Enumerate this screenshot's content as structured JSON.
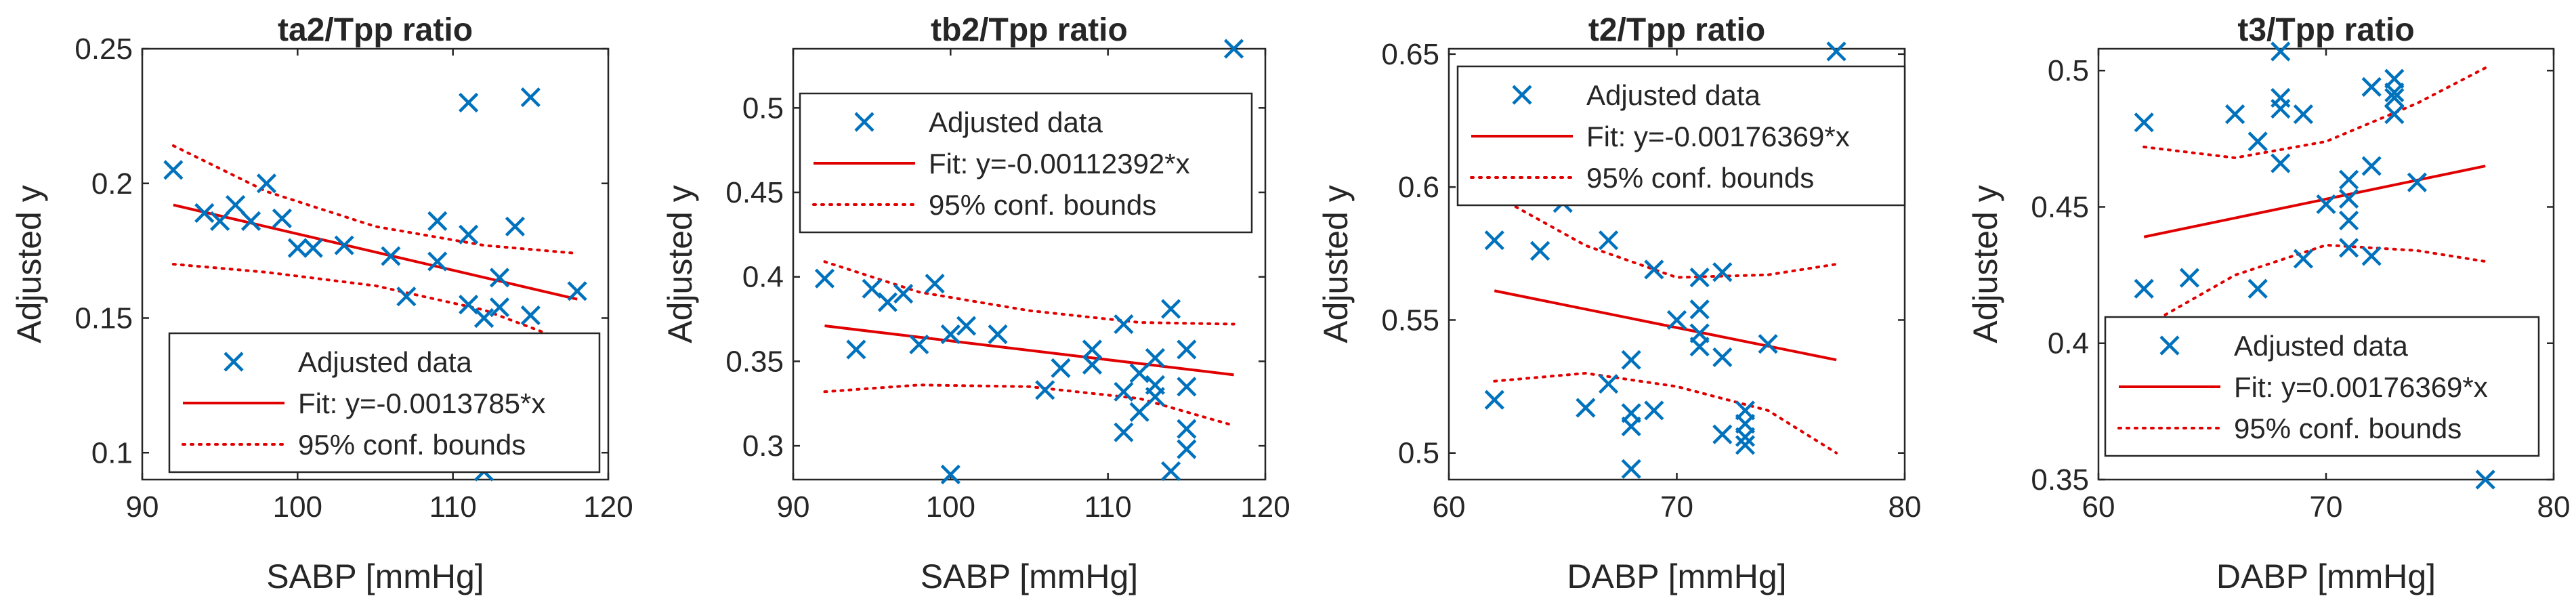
{
  "chart_data": [
    {
      "type": "scatter",
      "title": "ta2/Tpp ratio",
      "xlabel": "SABP [mmHg]",
      "ylabel": "Adjusted y",
      "xlim": [
        90,
        120
      ],
      "ylim": [
        0.09,
        0.25
      ],
      "xticks": [
        90,
        100,
        110,
        120
      ],
      "xtick_labels": [
        "90",
        "100",
        "110",
        "120"
      ],
      "yticks": [
        0.1,
        0.15,
        0.2,
        0.25
      ],
      "ytick_labels": [
        "0.1",
        "0.15",
        "0.2",
        "0.25"
      ],
      "legend_position": "bottom-right",
      "legend": [
        "Adjusted data",
        "Fit: y=-0.0013785*x",
        "95% conf. bounds"
      ],
      "points": {
        "x": [
          92,
          94,
          95,
          96,
          97,
          98,
          99,
          100,
          101,
          103,
          106,
          107,
          109,
          109,
          111,
          111,
          111,
          112,
          112,
          113,
          113,
          114,
          115,
          115,
          118
        ],
        "y": [
          0.205,
          0.189,
          0.186,
          0.192,
          0.186,
          0.2,
          0.187,
          0.176,
          0.176,
          0.177,
          0.173,
          0.158,
          0.171,
          0.186,
          0.23,
          0.181,
          0.155,
          0.15,
          0.093,
          0.165,
          0.154,
          0.184,
          0.232,
          0.151,
          0.16
        ]
      },
      "fit": {
        "x": [
          92,
          118
        ],
        "y": [
          0.192,
          0.157
        ]
      },
      "bounds_upper": {
        "x": [
          92,
          98,
          105,
          112,
          118
        ],
        "y": [
          0.214,
          0.197,
          0.184,
          0.177,
          0.174
        ]
      },
      "bounds_lower": {
        "x": [
          92,
          98,
          105,
          112,
          118
        ],
        "y": [
          0.17,
          0.167,
          0.162,
          0.153,
          0.14
        ]
      }
    },
    {
      "type": "scatter",
      "title": "tb2/Tpp ratio",
      "xlabel": "SABP [mmHg]",
      "ylabel": "Adjusted y",
      "xlim": [
        90,
        120
      ],
      "ylim": [
        0.28,
        0.535
      ],
      "xticks": [
        90,
        100,
        110,
        120
      ],
      "xtick_labels": [
        "90",
        "100",
        "110",
        "120"
      ],
      "yticks": [
        0.3,
        0.35,
        0.4,
        0.45,
        0.5
      ],
      "ytick_labels": [
        "0.3",
        "0.35",
        "0.4",
        "0.45",
        "0.5"
      ],
      "legend_position": "top",
      "legend": [
        "Adjusted data",
        "Fit: y=-0.00112392*x",
        "95% conf. bounds"
      ],
      "points": {
        "x": [
          92,
          94,
          95,
          96,
          97,
          98,
          99,
          100,
          100,
          101,
          103,
          106,
          107,
          109,
          109,
          111,
          111,
          111,
          112,
          112,
          113,
          113,
          113,
          114,
          114,
          115,
          115,
          115,
          115,
          118
        ],
        "y": [
          0.399,
          0.357,
          0.393,
          0.385,
          0.39,
          0.36,
          0.396,
          0.366,
          0.283,
          0.371,
          0.366,
          0.333,
          0.346,
          0.357,
          0.348,
          0.372,
          0.332,
          0.308,
          0.343,
          0.32,
          0.336,
          0.329,
          0.352,
          0.381,
          0.285,
          0.357,
          0.335,
          0.31,
          0.298,
          0.535
        ]
      },
      "fit": {
        "x": [
          92,
          118
        ],
        "y": [
          0.371,
          0.342
        ]
      },
      "bounds_upper": {
        "x": [
          92,
          98,
          105,
          112,
          118
        ],
        "y": [
          0.409,
          0.391,
          0.38,
          0.373,
          0.372
        ]
      },
      "bounds_lower": {
        "x": [
          92,
          98,
          105,
          112,
          118
        ],
        "y": [
          0.332,
          0.336,
          0.335,
          0.328,
          0.312
        ]
      }
    },
    {
      "type": "scatter",
      "title": "t2/Tpp ratio",
      "xlabel": "DABP [mmHg]",
      "ylabel": "Adjusted y",
      "xlim": [
        60,
        80
      ],
      "ylim": [
        0.49,
        0.652
      ],
      "xticks": [
        60,
        70,
        80
      ],
      "xtick_labels": [
        "60",
        "70",
        "80"
      ],
      "yticks": [
        0.5,
        0.55,
        0.6,
        0.65
      ],
      "ytick_labels": [
        "0.5",
        "0.55",
        "0.6",
        "0.65"
      ],
      "legend_position": "top",
      "legend": [
        "Adjusted data",
        "Fit: y=-0.00176369*x",
        "95% conf. bounds"
      ],
      "points": {
        "x": [
          62,
          62,
          64,
          65,
          66,
          67,
          67,
          68,
          68,
          68,
          68,
          69,
          69,
          70,
          71,
          71,
          71,
          71,
          72,
          72,
          72,
          73,
          73,
          73,
          73,
          74,
          77
        ],
        "y": [
          0.58,
          0.52,
          0.576,
          0.594,
          0.517,
          0.526,
          0.58,
          0.535,
          0.515,
          0.51,
          0.494,
          0.569,
          0.516,
          0.55,
          0.566,
          0.554,
          0.545,
          0.54,
          0.568,
          0.536,
          0.507,
          0.516,
          0.511,
          0.506,
          0.503,
          0.541,
          0.651
        ]
      },
      "fit": {
        "x": [
          62,
          77
        ],
        "y": [
          0.561,
          0.535
        ]
      },
      "bounds_upper": {
        "x": [
          62,
          66,
          70,
          74,
          77
        ],
        "y": [
          0.597,
          0.578,
          0.566,
          0.567,
          0.571
        ]
      },
      "bounds_lower": {
        "x": [
          62,
          66,
          70,
          74,
          77
        ],
        "y": [
          0.527,
          0.53,
          0.525,
          0.516,
          0.5
        ]
      }
    },
    {
      "type": "scatter",
      "title": "t3/Tpp ratio",
      "xlabel": "DABP [mmHg]",
      "ylabel": "Adjusted y",
      "xlim": [
        60,
        80
      ],
      "ylim": [
        0.35,
        0.508
      ],
      "xticks": [
        60,
        70,
        80
      ],
      "xtick_labels": [
        "60",
        "70",
        "80"
      ],
      "yticks": [
        0.35,
        0.4,
        0.45,
        0.5
      ],
      "ytick_labels": [
        "0.35",
        "0.4",
        "0.45",
        "0.5"
      ],
      "legend_position": "bottom",
      "legend": [
        "Adjusted data",
        "Fit: y=0.00176369*x",
        "95% conf. bounds"
      ],
      "points": {
        "x": [
          62,
          62,
          64,
          66,
          67,
          67,
          68,
          68,
          68,
          68,
          69,
          69,
          70,
          71,
          71,
          71,
          71,
          72,
          72,
          72,
          73,
          73,
          73,
          73,
          74,
          77
        ],
        "y": [
          0.481,
          0.42,
          0.424,
          0.484,
          0.474,
          0.42,
          0.507,
          0.49,
          0.486,
          0.466,
          0.484,
          0.431,
          0.451,
          0.46,
          0.453,
          0.445,
          0.435,
          0.494,
          0.465,
          0.432,
          0.497,
          0.492,
          0.49,
          0.484,
          0.459,
          0.35
        ]
      },
      "fit": {
        "x": [
          62,
          77
        ],
        "y": [
          0.439,
          0.465
        ]
      },
      "bounds_upper": {
        "x": [
          62,
          66,
          70,
          74,
          77
        ],
        "y": [
          0.472,
          0.468,
          0.474,
          0.488,
          0.501
        ]
      },
      "bounds_lower": {
        "x": [
          62,
          66,
          70,
          74,
          77
        ],
        "y": [
          0.406,
          0.425,
          0.436,
          0.434,
          0.43
        ]
      }
    }
  ]
}
